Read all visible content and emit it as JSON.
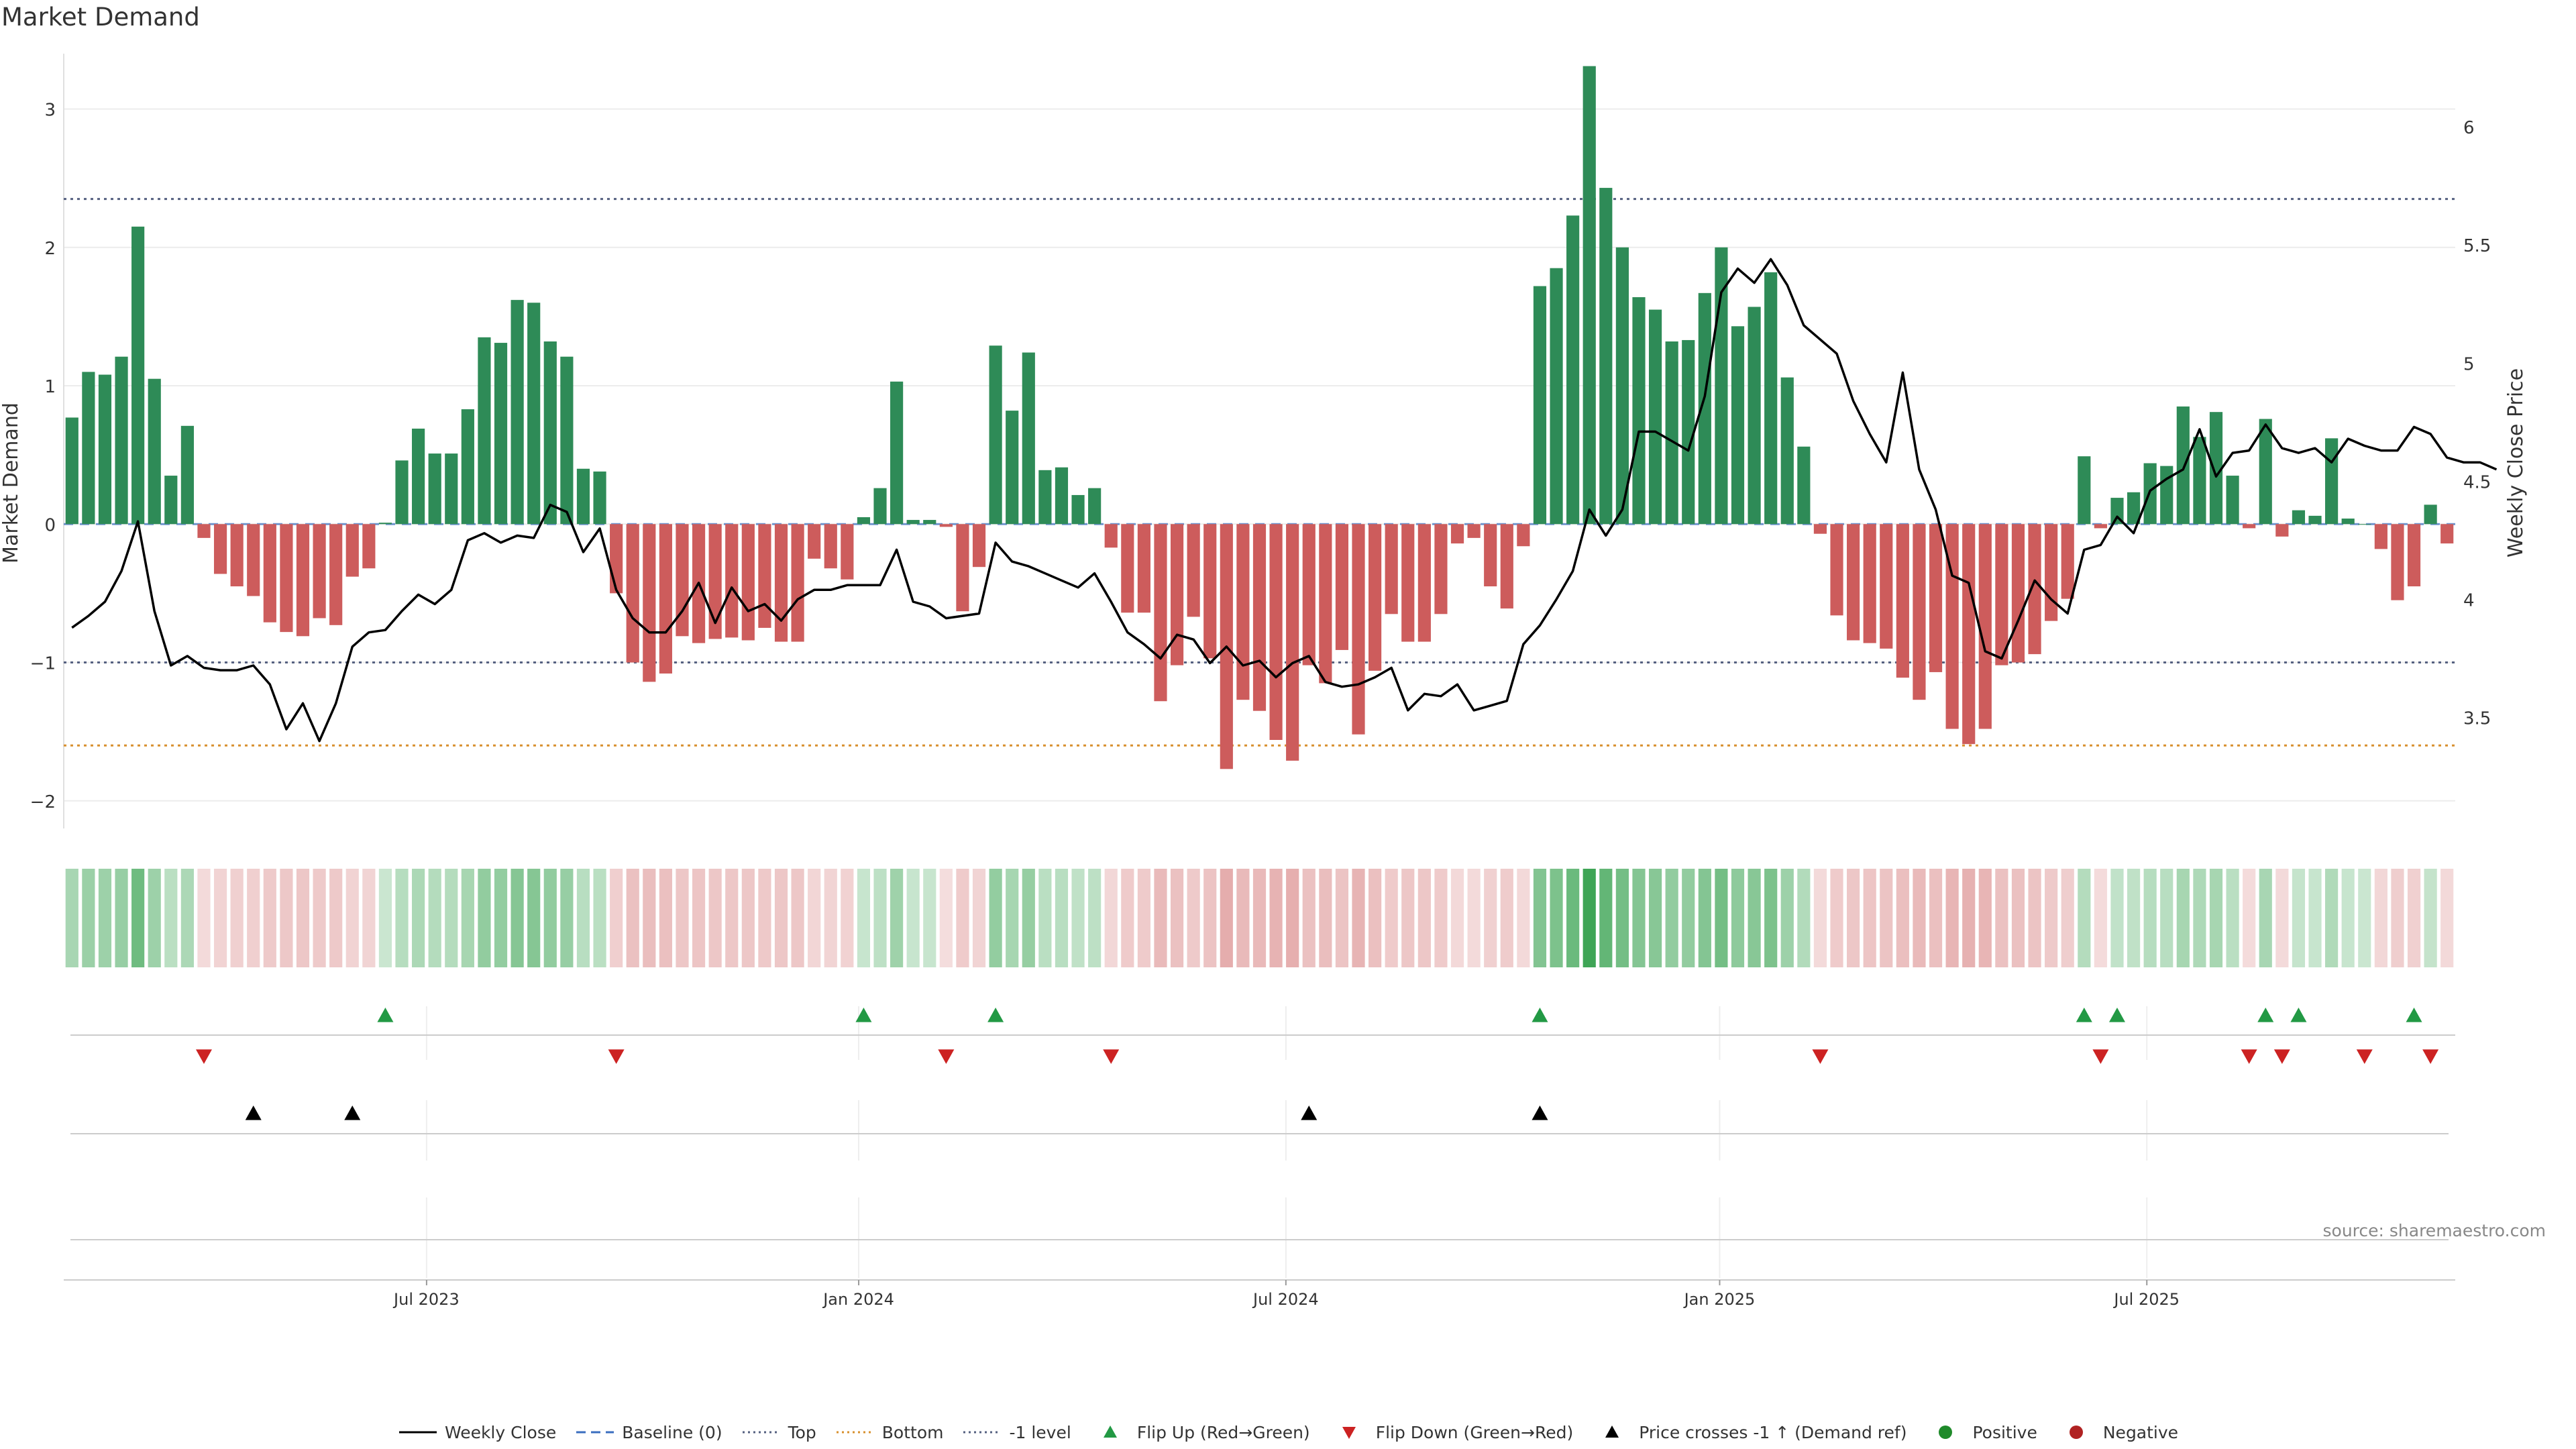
{
  "title": "Market Demand",
  "source": "source: sharemaestro.com",
  "colors": {
    "positive": "#2e8b57",
    "negative": "#cd5c5c",
    "price": "#000000",
    "flip_up": "#229944",
    "flip_down": "#cc2222",
    "cross": "#000000",
    "top": "#556080",
    "bottom": "#d8902e",
    "level": "#556080",
    "baseline": "#3a6ebf",
    "heat_pos": "#3fa556",
    "heat_neg": "#d88484",
    "dot_pos": "#1f8a2a",
    "dot_neg": "#b02222"
  },
  "chart_data": {
    "type": "bar",
    "title": "Market Demand",
    "ylabel": "Market Demand",
    "y2label": "Weekly Close Price",
    "ylim": [
      -2.2,
      3.4
    ],
    "y2lim": [
      3.03,
      6.31
    ],
    "yticks": [
      -2,
      -1,
      0,
      1,
      2,
      3
    ],
    "ytick_labels": [
      "−2",
      "−1",
      "0",
      "1",
      "2",
      "3"
    ],
    "y2ticks": [
      3.5,
      4,
      4.5,
      5,
      5.5,
      6
    ],
    "y2tick_labels": [
      "3.5",
      "4",
      "4.5",
      "5",
      "5.5",
      "6"
    ],
    "reference_lines": {
      "top": 2.35,
      "bottom": -1.6,
      "minus_one": -1
    },
    "x_ticks": [
      {
        "label": "Jul 2023",
        "week": 21.5
      },
      {
        "label": "Jan 2024",
        "week": 47.7
      },
      {
        "label": "Jul 2024",
        "week": 73.6
      },
      {
        "label": "Jan 2025",
        "week": 99.9
      },
      {
        "label": "Jul 2025",
        "week": 125.8
      }
    ],
    "demand": [
      0.77,
      1.1,
      1.08,
      1.21,
      2.15,
      1.05,
      0.35,
      0.71,
      -0.1,
      -0.36,
      -0.45,
      -0.52,
      -0.71,
      -0.78,
      -0.81,
      -0.68,
      -0.73,
      -0.38,
      -0.32,
      0.01,
      0.46,
      0.69,
      0.51,
      0.51,
      0.83,
      1.35,
      1.31,
      1.62,
      1.6,
      1.32,
      1.21,
      0.4,
      0.38,
      -0.5,
      -1.0,
      -1.14,
      -1.08,
      -0.81,
      -0.86,
      -0.83,
      -0.82,
      -0.84,
      -0.75,
      -0.85,
      -0.85,
      -0.25,
      -0.32,
      -0.4,
      0.05,
      0.26,
      1.03,
      0.03,
      0.03,
      -0.02,
      -0.63,
      -0.31,
      1.29,
      0.82,
      1.24,
      0.39,
      0.41,
      0.21,
      0.26,
      -0.17,
      -0.64,
      -0.64,
      -1.28,
      -1.02,
      -0.67,
      -0.97,
      -1.77,
      -1.27,
      -1.35,
      -1.56,
      -1.71,
      -1.02,
      -1.15,
      -0.91,
      -1.52,
      -1.06,
      -0.65,
      -0.85,
      -0.85,
      -0.65,
      -0.14,
      -0.1,
      -0.45,
      -0.61,
      -0.16,
      1.72,
      1.85,
      2.23,
      3.31,
      2.43,
      2.0,
      1.64,
      1.55,
      1.32,
      1.33,
      1.67,
      2.0,
      1.43,
      1.57,
      1.82,
      1.06,
      0.56,
      -0.07,
      -0.66,
      -0.84,
      -0.86,
      -0.9,
      -1.11,
      -1.27,
      -1.07,
      -1.48,
      -1.59,
      -1.48,
      -1.02,
      -1.0,
      -0.94,
      -0.7,
      -0.54,
      0.49,
      -0.03,
      0.19,
      0.23,
      0.44,
      0.42,
      0.85,
      0.63,
      0.81,
      0.35,
      -0.03,
      0.76,
      -0.09,
      0.1,
      0.06,
      0.62,
      0.04,
      0.0,
      -0.18,
      -0.55,
      -0.45,
      0.14,
      -0.14
    ],
    "price": [
      3.88,
      3.93,
      3.99,
      4.12,
      4.33,
      3.95,
      3.72,
      3.76,
      3.71,
      3.7,
      3.7,
      3.72,
      3.64,
      3.45,
      3.56,
      3.4,
      3.56,
      3.8,
      3.86,
      3.87,
      3.95,
      4.02,
      3.98,
      4.04,
      4.25,
      4.28,
      4.24,
      4.27,
      4.26,
      4.4,
      4.37,
      4.2,
      4.3,
      4.04,
      3.92,
      3.86,
      3.86,
      3.95,
      4.07,
      3.9,
      4.05,
      3.95,
      3.98,
      3.91,
      4.0,
      4.04,
      4.04,
      4.06,
      4.06,
      4.06,
      4.21,
      3.99,
      3.97,
      3.92,
      3.93,
      3.94,
      4.24,
      4.16,
      4.14,
      4.11,
      4.08,
      4.05,
      4.11,
      3.99,
      3.86,
      3.81,
      3.75,
      3.85,
      3.83,
      3.73,
      3.8,
      3.72,
      3.74,
      3.67,
      3.73,
      3.76,
      3.65,
      3.63,
      3.64,
      3.67,
      3.71,
      3.53,
      3.6,
      3.59,
      3.64,
      3.53,
      3.55,
      3.57,
      3.81,
      3.89,
      4.0,
      4.12,
      4.38,
      4.27,
      4.38,
      4.71,
      4.71,
      4.67,
      4.63,
      4.86,
      5.3,
      5.4,
      5.34,
      5.44,
      5.33,
      5.16,
      5.1,
      5.04,
      4.84,
      4.7,
      4.58,
      4.96,
      4.55,
      4.38,
      4.1,
      4.07,
      3.78,
      3.75,
      3.91,
      4.08,
      4.0,
      3.94,
      4.21,
      4.23,
      4.35,
      4.28,
      4.46,
      4.51,
      4.55,
      4.72,
      4.52,
      4.62,
      4.63,
      4.74,
      4.64,
      4.62,
      4.64,
      4.58,
      4.68,
      4.65,
      4.63,
      4.63,
      4.73,
      4.7,
      4.6,
      4.58,
      4.58,
      4.55
    ],
    "flip_up_weeks": [
      19,
      48,
      56,
      89,
      122,
      124,
      133,
      135,
      142
    ],
    "flip_down_weeks": [
      8,
      33,
      53,
      63,
      106,
      123,
      132,
      134,
      139,
      143
    ],
    "price_cross_weeks": [
      11,
      17,
      75,
      89
    ]
  },
  "legend": [
    {
      "label": "Weekly Close",
      "kind": "line"
    },
    {
      "label": "Baseline (0)",
      "kind": "dash"
    },
    {
      "label": "Top",
      "kind": "dots-blue"
    },
    {
      "label": "Bottom",
      "kind": "dots-orange"
    },
    {
      "label": "-1 level",
      "kind": "dots-blue"
    },
    {
      "label": "Flip Up (Red→Green)",
      "kind": "tri-up-green"
    },
    {
      "label": "Flip Down (Green→Red)",
      "kind": "tri-down-red"
    },
    {
      "label": "Price crosses -1 ↑ (Demand ref)",
      "kind": "tri-up-black"
    },
    {
      "label": "Positive",
      "kind": "dot-green"
    },
    {
      "label": "Negative",
      "kind": "dot-red"
    }
  ]
}
